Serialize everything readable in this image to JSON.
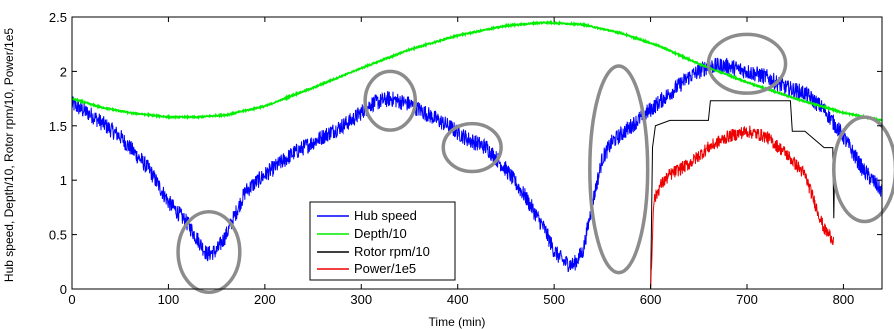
{
  "chart_data": {
    "type": "line",
    "xlabel": "Time (min)",
    "ylabel": "Hub speed, Depth/10, Rotor rpm/10, Power/1e5",
    "xlim": [
      0,
      840
    ],
    "ylim": [
      0,
      2.5
    ],
    "x_ticks": [
      0,
      100,
      200,
      300,
      400,
      500,
      600,
      700,
      800
    ],
    "x_tick_labels": [
      "0",
      "100",
      "200",
      "300",
      "400",
      "500",
      "600",
      "700",
      "800"
    ],
    "y_ticks": [
      0,
      0.5,
      1,
      1.5,
      2,
      2.5
    ],
    "y_tick_labels": [
      "0",
      "0.5",
      "1",
      "1.5",
      "2",
      "2.5"
    ],
    "grid": false,
    "legend_position": "lower-center",
    "series": [
      {
        "name": "Hub speed",
        "color": "#0000ff",
        "x": [
          0,
          20,
          50,
          80,
          100,
          120,
          140,
          150,
          160,
          170,
          180,
          200,
          230,
          260,
          290,
          310,
          330,
          350,
          370,
          390,
          410,
          430,
          450,
          470,
          490,
          500,
          510,
          520,
          530,
          540,
          550,
          560,
          580,
          600,
          620,
          640,
          660,
          680,
          700,
          720,
          740,
          760,
          780,
          800,
          820,
          840
        ],
        "y": [
          1.7,
          1.6,
          1.4,
          1.1,
          0.8,
          0.6,
          0.32,
          0.35,
          0.5,
          0.7,
          0.9,
          1.05,
          1.25,
          1.4,
          1.55,
          1.7,
          1.75,
          1.7,
          1.6,
          1.5,
          1.38,
          1.3,
          1.1,
          0.85,
          0.55,
          0.35,
          0.25,
          0.22,
          0.35,
          0.8,
          1.2,
          1.35,
          1.5,
          1.65,
          1.8,
          1.95,
          2.05,
          2.05,
          2.0,
          1.95,
          1.85,
          1.8,
          1.65,
          1.4,
          1.1,
          0.9
        ]
      },
      {
        "name": "Depth/10",
        "color": "#00ee00",
        "x": [
          0,
          30,
          60,
          100,
          130,
          160,
          200,
          250,
          300,
          350,
          400,
          450,
          490,
          530,
          570,
          610,
          650,
          700,
          750,
          800,
          840
        ],
        "y": [
          1.75,
          1.67,
          1.62,
          1.58,
          1.58,
          1.6,
          1.68,
          1.85,
          2.03,
          2.2,
          2.33,
          2.42,
          2.45,
          2.43,
          2.35,
          2.23,
          2.07,
          1.9,
          1.75,
          1.62,
          1.55
        ]
      },
      {
        "name": "Rotor rpm/10",
        "color": "#000000",
        "x": [
          600,
          602,
          605,
          620,
          640,
          660,
          662,
          680,
          700,
          720,
          745,
          747,
          760,
          780,
          789,
          790,
          791
        ],
        "y": [
          0,
          1.3,
          1.5,
          1.55,
          1.55,
          1.55,
          1.73,
          1.73,
          1.73,
          1.73,
          1.73,
          1.45,
          1.45,
          1.3,
          1.3,
          0.65,
          1.25
        ]
      },
      {
        "name": "Power/1e5",
        "color": "#ee0000",
        "x": [
          600,
          601,
          603,
          610,
          620,
          640,
          660,
          680,
          700,
          720,
          740,
          760,
          770,
          780,
          790
        ],
        "y": [
          0,
          0.2,
          0.8,
          0.95,
          1.05,
          1.15,
          1.3,
          1.4,
          1.45,
          1.4,
          1.25,
          1.05,
          0.8,
          0.55,
          0.45
        ]
      }
    ],
    "annotations": [
      {
        "type": "ellipse",
        "cx": 142,
        "cy": 0.34,
        "rx": 32,
        "ry": 0.37
      },
      {
        "type": "ellipse",
        "cx": 330,
        "cy": 1.73,
        "rx": 26,
        "ry": 0.27
      },
      {
        "type": "ellipse",
        "cx": 415,
        "cy": 1.3,
        "rx": 30,
        "ry": 0.22
      },
      {
        "type": "ellipse",
        "cx": 567,
        "cy": 1.1,
        "rx": 30,
        "ry": 0.95
      },
      {
        "type": "ellipse",
        "cx": 700,
        "cy": 2.07,
        "rx": 40,
        "ry": 0.27
      },
      {
        "type": "ellipse",
        "cx": 822,
        "cy": 1.1,
        "rx": 32,
        "ry": 0.48
      }
    ]
  }
}
